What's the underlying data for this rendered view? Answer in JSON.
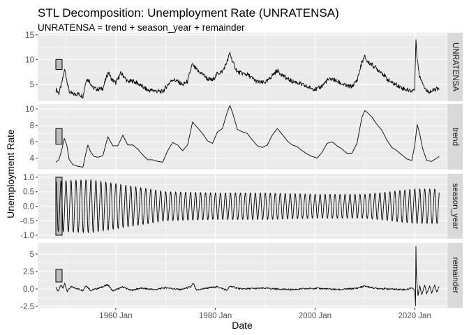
{
  "chart_data": {
    "type": "line",
    "title": "STL Decomposition: Unemployment Rate (UNRATENSA)",
    "subtitle": "UNRATENSA = trend + season_year + remainder",
    "xlabel": "Date",
    "ylabel": "Unemployment Rate",
    "x_ticks": [
      "1960 Jan",
      "1980 Jan",
      "2000 Jan",
      "2020 Jan"
    ],
    "x_range": [
      "1944-05",
      "2026-06"
    ],
    "grid": true,
    "panels": [
      {
        "name": "UNRATENSA",
        "ylim": [
          1.6,
          15.4
        ],
        "y_ticks": [
          5,
          10,
          15
        ],
        "scale_bar_range": [
          8,
          10
        ],
        "series_points": [
          [
            "1948-01",
            4.0
          ],
          [
            "1948-08",
            3.2
          ],
          [
            "1949-02",
            4.9
          ],
          [
            "1949-07",
            6.8
          ],
          [
            "1949-10",
            8.0
          ],
          [
            "1950-03",
            6.0
          ],
          [
            "1950-09",
            3.5
          ],
          [
            "1951-06",
            3.0
          ],
          [
            "1952-06",
            3.1
          ],
          [
            "1953-06",
            2.6
          ],
          [
            "1954-02",
            6.0
          ],
          [
            "1954-09",
            5.8
          ],
          [
            "1955-06",
            4.3
          ],
          [
            "1956-06",
            4.0
          ],
          [
            "1957-06",
            4.2
          ],
          [
            "1958-01",
            6.0
          ],
          [
            "1958-07",
            7.5
          ],
          [
            "1959-03",
            6.0
          ],
          [
            "1960-01",
            5.3
          ],
          [
            "1961-01",
            7.2
          ],
          [
            "1961-07",
            6.8
          ],
          [
            "1962-06",
            5.5
          ],
          [
            "1963-06",
            5.7
          ],
          [
            "1964-06",
            5.2
          ],
          [
            "1965-06",
            4.5
          ],
          [
            "1966-06",
            3.8
          ],
          [
            "1967-06",
            3.8
          ],
          [
            "1968-06",
            3.6
          ],
          [
            "1969-06",
            3.5
          ],
          [
            "1970-06",
            4.9
          ],
          [
            "1971-06",
            6.0
          ],
          [
            "1972-06",
            5.6
          ],
          [
            "1973-06",
            4.9
          ],
          [
            "1974-06",
            5.6
          ],
          [
            "1975-05",
            9.0
          ],
          [
            "1975-12",
            8.3
          ],
          [
            "1976-06",
            7.7
          ],
          [
            "1977-06",
            7.1
          ],
          [
            "1978-06",
            6.1
          ],
          [
            "1979-06",
            5.8
          ],
          [
            "1980-06",
            7.2
          ],
          [
            "1981-06",
            7.6
          ],
          [
            "1982-06",
            9.7
          ],
          [
            "1982-12",
            11.4
          ],
          [
            "1983-06",
            9.6
          ],
          [
            "1984-06",
            7.5
          ],
          [
            "1985-06",
            7.2
          ],
          [
            "1986-06",
            7.0
          ],
          [
            "1987-06",
            6.2
          ],
          [
            "1988-06",
            5.5
          ],
          [
            "1989-06",
            5.3
          ],
          [
            "1990-06",
            5.6
          ],
          [
            "1991-06",
            6.8
          ],
          [
            "1992-06",
            7.8
          ],
          [
            "1993-06",
            6.9
          ],
          [
            "1994-06",
            6.1
          ],
          [
            "1995-06",
            5.6
          ],
          [
            "1996-06",
            5.4
          ],
          [
            "1997-06",
            4.9
          ],
          [
            "1998-06",
            4.5
          ],
          [
            "1999-06",
            4.2
          ],
          [
            "2000-06",
            4.0
          ],
          [
            "2001-06",
            4.7
          ],
          [
            "2002-06",
            5.8
          ],
          [
            "2003-06",
            6.1
          ],
          [
            "2004-06",
            5.6
          ],
          [
            "2005-06",
            5.1
          ],
          [
            "2006-06",
            4.6
          ],
          [
            "2007-06",
            4.6
          ],
          [
            "2008-06",
            5.8
          ],
          [
            "2009-06",
            9.5
          ],
          [
            "2010-01",
            10.6
          ],
          [
            "2010-06",
            9.6
          ],
          [
            "2011-06",
            9.0
          ],
          [
            "2012-06",
            8.1
          ],
          [
            "2013-06",
            7.4
          ],
          [
            "2014-06",
            6.1
          ],
          [
            "2015-06",
            5.3
          ],
          [
            "2016-06",
            4.9
          ],
          [
            "2017-06",
            4.3
          ],
          [
            "2018-06",
            3.9
          ],
          [
            "2019-06",
            3.7
          ],
          [
            "2020-01",
            4.0
          ],
          [
            "2020-04",
            14.4
          ],
          [
            "2020-06",
            11.1
          ],
          [
            "2020-12",
            6.7
          ],
          [
            "2021-06",
            5.9
          ],
          [
            "2022-01",
            4.4
          ],
          [
            "2022-06",
            3.6
          ],
          [
            "2023-06",
            3.6
          ],
          [
            "2024-06",
            4.1
          ],
          [
            "2024-12",
            3.8
          ]
        ]
      },
      {
        "name": "trend",
        "ylim": [
          2.6,
          10.6
        ],
        "y_ticks": [
          4,
          6,
          8,
          10
        ],
        "scale_bar_range": [
          5.7,
          7.6
        ],
        "series_points": [
          [
            "1948-01",
            3.5
          ],
          [
            "1948-08",
            3.8
          ],
          [
            "1949-03",
            5.0
          ],
          [
            "1949-09",
            6.4
          ],
          [
            "1950-03",
            5.6
          ],
          [
            "1950-09",
            3.8
          ],
          [
            "1951-06",
            3.2
          ],
          [
            "1952-06",
            3.0
          ],
          [
            "1953-06",
            2.9
          ],
          [
            "1954-01",
            4.6
          ],
          [
            "1954-06",
            5.6
          ],
          [
            "1955-01",
            4.7
          ],
          [
            "1955-09",
            4.2
          ],
          [
            "1956-06",
            4.1
          ],
          [
            "1957-06",
            4.3
          ],
          [
            "1958-06",
            6.6
          ],
          [
            "1959-06",
            5.5
          ],
          [
            "1960-06",
            5.5
          ],
          [
            "1961-06",
            6.8
          ],
          [
            "1962-06",
            5.6
          ],
          [
            "1963-06",
            5.6
          ],
          [
            "1964-06",
            5.1
          ],
          [
            "1965-06",
            4.4
          ],
          [
            "1966-06",
            3.8
          ],
          [
            "1967-06",
            3.8
          ],
          [
            "1968-06",
            3.6
          ],
          [
            "1969-06",
            3.5
          ],
          [
            "1970-06",
            4.9
          ],
          [
            "1971-06",
            5.9
          ],
          [
            "1972-06",
            5.6
          ],
          [
            "1973-06",
            4.9
          ],
          [
            "1974-06",
            5.6
          ],
          [
            "1975-06",
            8.4
          ],
          [
            "1976-06",
            7.7
          ],
          [
            "1977-06",
            7.0
          ],
          [
            "1978-06",
            6.1
          ],
          [
            "1979-06",
            5.8
          ],
          [
            "1980-06",
            7.2
          ],
          [
            "1981-06",
            7.6
          ],
          [
            "1982-06",
            9.7
          ],
          [
            "1982-12",
            10.4
          ],
          [
            "1983-06",
            9.6
          ],
          [
            "1984-06",
            7.5
          ],
          [
            "1985-06",
            7.2
          ],
          [
            "1986-06",
            7.0
          ],
          [
            "1987-06",
            6.2
          ],
          [
            "1988-06",
            5.5
          ],
          [
            "1989-06",
            5.3
          ],
          [
            "1990-06",
            5.6
          ],
          [
            "1991-06",
            6.8
          ],
          [
            "1992-06",
            7.6
          ],
          [
            "1993-06",
            6.9
          ],
          [
            "1994-06",
            6.1
          ],
          [
            "1995-06",
            5.6
          ],
          [
            "1996-06",
            5.4
          ],
          [
            "1997-06",
            4.9
          ],
          [
            "1998-06",
            4.5
          ],
          [
            "1999-06",
            4.2
          ],
          [
            "2000-06",
            4.0
          ],
          [
            "2001-06",
            4.7
          ],
          [
            "2002-06",
            5.8
          ],
          [
            "2003-06",
            6.0
          ],
          [
            "2004-06",
            5.5
          ],
          [
            "2005-06",
            5.1
          ],
          [
            "2006-06",
            4.6
          ],
          [
            "2007-06",
            4.6
          ],
          [
            "2008-06",
            5.8
          ],
          [
            "2009-06",
            9.0
          ],
          [
            "2010-01",
            9.8
          ],
          [
            "2010-06",
            9.6
          ],
          [
            "2011-06",
            9.0
          ],
          [
            "2012-06",
            8.1
          ],
          [
            "2013-06",
            7.4
          ],
          [
            "2014-06",
            6.2
          ],
          [
            "2015-06",
            5.3
          ],
          [
            "2016-06",
            4.9
          ],
          [
            "2017-06",
            4.4
          ],
          [
            "2018-06",
            3.9
          ],
          [
            "2019-06",
            3.7
          ],
          [
            "2020-01",
            5.5
          ],
          [
            "2020-07",
            8.1
          ],
          [
            "2021-01",
            7.0
          ],
          [
            "2021-08",
            5.2
          ],
          [
            "2022-06",
            3.7
          ],
          [
            "2023-06",
            3.6
          ],
          [
            "2024-06",
            4.0
          ],
          [
            "2024-12",
            4.2
          ]
        ]
      },
      {
        "name": "season_year",
        "ylim": [
          -1.12,
          1.12
        ],
        "y_ticks": [
          -1.0,
          -0.5,
          0.0,
          0.5,
          1.0
        ],
        "scale_bar_range": [
          -1.0,
          1.0
        ],
        "seasonal_envelope": [
          [
            "1948-01",
            0.95
          ],
          [
            "1955-01",
            1.0
          ],
          [
            "1960-01",
            0.85
          ],
          [
            "1970-01",
            0.55
          ],
          [
            "1980-01",
            0.5
          ],
          [
            "1990-01",
            0.5
          ],
          [
            "2000-01",
            0.45
          ],
          [
            "2010-01",
            0.45
          ],
          [
            "2020-01",
            0.65
          ],
          [
            "2024-12",
            0.65
          ]
        ]
      },
      {
        "name": "remainder",
        "ylim": [
          -2.7,
          6.6
        ],
        "y_ticks": [
          -2.5,
          0.0,
          2.5,
          5.0
        ],
        "scale_bar_range": [
          1.0,
          2.8
        ],
        "series_points": [
          [
            "1948-01",
            0.2
          ],
          [
            "1948-06",
            -0.3
          ],
          [
            "1949-01",
            0.5
          ],
          [
            "1949-06",
            0.1
          ],
          [
            "1949-10",
            0.8
          ],
          [
            "1950-04",
            -0.3
          ],
          [
            "1951-01",
            0.3
          ],
          [
            "1952-01",
            0.1
          ],
          [
            "1953-06",
            -0.2
          ],
          [
            "1954-01",
            0.5
          ],
          [
            "1955-01",
            -0.2
          ],
          [
            "1957-01",
            0.2
          ],
          [
            "1958-06",
            0.6
          ],
          [
            "1959-06",
            -0.3
          ],
          [
            "1961-06",
            0.3
          ],
          [
            "1963-01",
            -0.2
          ],
          [
            "1965-01",
            0.1
          ],
          [
            "1968-01",
            -0.1
          ],
          [
            "1970-01",
            0.2
          ],
          [
            "1973-01",
            -0.1
          ],
          [
            "1975-02",
            0.3
          ],
          [
            "1975-08",
            0.8
          ],
          [
            "1976-03",
            -0.2
          ],
          [
            "1978-01",
            0.1
          ],
          [
            "1980-06",
            0.3
          ],
          [
            "1982-06",
            -0.2
          ],
          [
            "1982-12",
            0.4
          ],
          [
            "1985-01",
            0.0
          ],
          [
            "1990-01",
            0.1
          ],
          [
            "1995-01",
            -0.1
          ],
          [
            "2000-01",
            0.1
          ],
          [
            "2005-01",
            -0.1
          ],
          [
            "2008-06",
            0.1
          ],
          [
            "2009-06",
            0.3
          ],
          [
            "2010-01",
            0.4
          ],
          [
            "2012-01",
            0.1
          ],
          [
            "2015-01",
            0.0
          ],
          [
            "2018-06",
            -0.1
          ],
          [
            "2019-06",
            0.2
          ],
          [
            "2020-01",
            -0.2
          ],
          [
            "2020-03",
            -2.4
          ],
          [
            "2020-04",
            6.2
          ],
          [
            "2020-05",
            2.4
          ],
          [
            "2020-06",
            1.2
          ],
          [
            "2020-09",
            -1.0
          ],
          [
            "2021-01",
            0.5
          ],
          [
            "2021-06",
            -0.8
          ],
          [
            "2022-01",
            0.6
          ],
          [
            "2022-06",
            -0.7
          ],
          [
            "2023-01",
            0.5
          ],
          [
            "2023-06",
            -0.6
          ],
          [
            "2024-01",
            0.5
          ],
          [
            "2024-06",
            -0.5
          ],
          [
            "2024-12",
            0.3
          ]
        ]
      }
    ]
  }
}
